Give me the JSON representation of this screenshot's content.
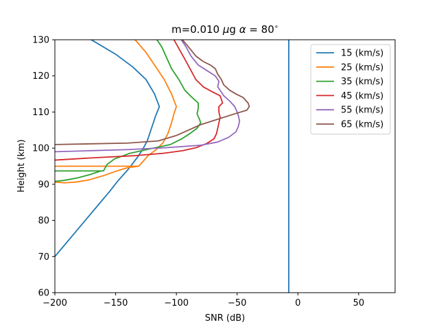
{
  "chart_data": {
    "type": "line",
    "title": {
      "prefix": "m=0.010 ",
      "mu": "μ",
      "unit": "g ",
      "alpha": "α",
      "eq": " = 80",
      "deg": "∘"
    },
    "xlabel": "SNR (dB)",
    "ylabel": "Height (km)",
    "xlim": [
      -200,
      80
    ],
    "ylim": [
      60,
      130
    ],
    "xticks": [
      -200,
      -150,
      -100,
      -50,
      0,
      50
    ],
    "xtick_labels": [
      "−200",
      "−150",
      "−100",
      "−50",
      "0",
      "50"
    ],
    "yticks": [
      60,
      70,
      80,
      90,
      100,
      110,
      120,
      130
    ],
    "ytick_labels": [
      "60",
      "70",
      "80",
      "90",
      "100",
      "110",
      "120",
      "130"
    ],
    "grid": false,
    "legend_position": "top-right",
    "series": [
      {
        "name": "15 (km/s)",
        "color": "#1f77b4",
        "points": [
          [
            -200,
            70
          ],
          [
            -195,
            72
          ],
          [
            -185,
            76
          ],
          [
            -175,
            80
          ],
          [
            -165,
            84
          ],
          [
            -155,
            88
          ],
          [
            -148,
            91
          ],
          [
            -140,
            94
          ],
          [
            -132,
            97.5
          ],
          [
            -128,
            99.5
          ],
          [
            -124,
            102
          ],
          [
            -120,
            106
          ],
          [
            -117,
            109
          ],
          [
            -114,
            111.5
          ],
          [
            -118,
            115
          ],
          [
            -125,
            119
          ],
          [
            -136,
            122.5
          ],
          [
            -150,
            126
          ],
          [
            -170,
            130
          ]
        ]
      },
      {
        "name": "15 (km/s)",
        "color": "#1f77b4",
        "points": [
          [
            -7.5,
            60
          ],
          [
            -7.5,
            130
          ]
        ]
      },
      {
        "name": "25 (km/s)",
        "color": "#ff7f0e",
        "points": [
          [
            -200,
            90.6
          ],
          [
            -192,
            90.4
          ],
          [
            -183,
            90.6
          ],
          [
            -172,
            91.2
          ],
          [
            -160,
            92.4
          ],
          [
            -148,
            93.8
          ],
          [
            -140,
            94.6
          ],
          [
            -131,
            95
          ],
          [
            -200,
            95
          ],
          [
            -131,
            95
          ],
          [
            -127,
            96.5
          ],
          [
            -123,
            98
          ],
          [
            -117,
            99.5
          ],
          [
            -111,
            101.5
          ],
          [
            -107,
            104
          ],
          [
            -104,
            107
          ],
          [
            -102,
            109.5
          ],
          [
            -100,
            111.5
          ],
          [
            -104,
            115
          ],
          [
            -110,
            119
          ],
          [
            -118,
            123
          ],
          [
            -125,
            126.5
          ],
          [
            -134,
            130
          ]
        ]
      },
      {
        "name": "35 (km/s)",
        "color": "#2ca02c",
        "points": [
          [
            -200,
            90.8
          ],
          [
            -192,
            91.1
          ],
          [
            -181,
            91.8
          ],
          [
            -171,
            92.7
          ],
          [
            -162,
            93.7
          ],
          [
            -200,
            93.7
          ],
          [
            -160,
            93.7
          ],
          [
            -157,
            95.5
          ],
          [
            -151,
            97
          ],
          [
            -139,
            98.5
          ],
          [
            -122,
            99.8
          ],
          [
            -105,
            101
          ],
          [
            -96,
            102.5
          ],
          [
            -89,
            104
          ],
          [
            -83,
            105.5
          ],
          [
            -80,
            107
          ],
          [
            -81,
            108
          ],
          [
            -83,
            109.5
          ],
          [
            -82,
            111
          ],
          [
            -82,
            112.5
          ],
          [
            -87,
            114
          ],
          [
            -93,
            116
          ],
          [
            -98,
            119
          ],
          [
            -104,
            122
          ],
          [
            -108,
            125
          ],
          [
            -112,
            128
          ],
          [
            -116,
            130
          ]
        ]
      },
      {
        "name": "45 (km/s)",
        "color": "#d62728",
        "points": [
          [
            -200,
            96.7
          ],
          [
            -170,
            97.3
          ],
          [
            -135,
            97.9
          ],
          [
            -110,
            98.6
          ],
          [
            -95,
            99.3
          ],
          [
            -83,
            100.2
          ],
          [
            -75,
            101.3
          ],
          [
            -69,
            102.6
          ],
          [
            -67,
            104
          ],
          [
            -66,
            105.5
          ],
          [
            -65,
            107
          ],
          [
            -64,
            108.5
          ],
          [
            -65,
            110
          ],
          [
            -65,
            111.5
          ],
          [
            -62,
            112.5
          ],
          [
            -63,
            113.5
          ],
          [
            -64,
            114.5
          ],
          [
            -70,
            115.5
          ],
          [
            -78,
            117
          ],
          [
            -84,
            119
          ],
          [
            -88,
            121.5
          ],
          [
            -92,
            124
          ],
          [
            -97,
            127
          ],
          [
            -102,
            130
          ]
        ]
      },
      {
        "name": "55 (km/s)",
        "color": "#9467bd",
        "points": [
          [
            -200,
            99
          ],
          [
            -170,
            99.3
          ],
          [
            -140,
            99.6
          ],
          [
            -110,
            100.1
          ],
          [
            -80,
            100.8
          ],
          [
            -66,
            101.7
          ],
          [
            -57,
            103
          ],
          [
            -51,
            104.5
          ],
          [
            -49,
            106
          ],
          [
            -48,
            107.5
          ],
          [
            -49,
            109
          ],
          [
            -50,
            110
          ],
          [
            -52,
            111.5
          ],
          [
            -56,
            113
          ],
          [
            -61,
            114.5
          ],
          [
            -64,
            116
          ],
          [
            -66,
            117
          ],
          [
            -65,
            118.5
          ],
          [
            -68,
            120
          ],
          [
            -75,
            121.5
          ],
          [
            -82,
            123
          ],
          [
            -88,
            125.5
          ],
          [
            -92,
            128
          ],
          [
            -96,
            130
          ]
        ]
      },
      {
        "name": "65 (km/s)",
        "color": "#8c564b",
        "points": [
          [
            -200,
            101
          ],
          [
            -170,
            101.2
          ],
          [
            -140,
            101.4
          ],
          [
            -115,
            102
          ],
          [
            -100,
            103.5
          ],
          [
            -90,
            105
          ],
          [
            -80,
            106.5
          ],
          [
            -66,
            108
          ],
          [
            -52,
            109.5
          ],
          [
            -42,
            110.5
          ],
          [
            -40,
            111.5
          ],
          [
            -41,
            112.5
          ],
          [
            -45,
            114
          ],
          [
            -51,
            115
          ],
          [
            -56,
            116
          ],
          [
            -61,
            117.5
          ],
          [
            -63,
            119
          ],
          [
            -66,
            120.5
          ],
          [
            -68,
            122
          ],
          [
            -72,
            123
          ],
          [
            -78,
            124
          ],
          [
            -84,
            125.5
          ],
          [
            -90,
            128
          ],
          [
            -95,
            130
          ]
        ]
      }
    ],
    "legend": [
      {
        "label": "15 (km/s)",
        "color": "#1f77b4"
      },
      {
        "label": "25 (km/s)",
        "color": "#ff7f0e"
      },
      {
        "label": "35 (km/s)",
        "color": "#2ca02c"
      },
      {
        "label": "45 (km/s)",
        "color": "#d62728"
      },
      {
        "label": "55 (km/s)",
        "color": "#9467bd"
      },
      {
        "label": "65 (km/s)",
        "color": "#8c564b"
      }
    ]
  }
}
